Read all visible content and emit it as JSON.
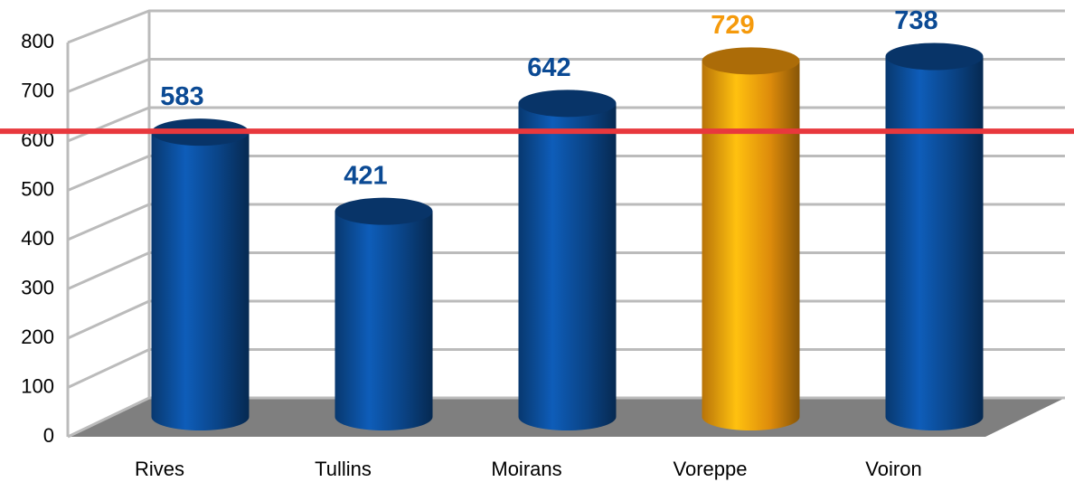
{
  "chart_data": {
    "type": "bar3d",
    "categories": [
      "Rives",
      "Tullins",
      "Moirans",
      "Voreppe",
      "Voiron"
    ],
    "values": [
      583,
      421,
      642,
      729,
      738
    ],
    "colors": [
      "#0b4a94",
      "#0b4a94",
      "#0b4a94",
      "#f59a0c",
      "#0b4a94"
    ],
    "ylim": [
      0,
      800
    ],
    "yticks": [
      0,
      100,
      200,
      300,
      400,
      500,
      600,
      700,
      800
    ],
    "grid": true,
    "reference_line": {
      "value": 620,
      "color": "#e8383d"
    }
  }
}
